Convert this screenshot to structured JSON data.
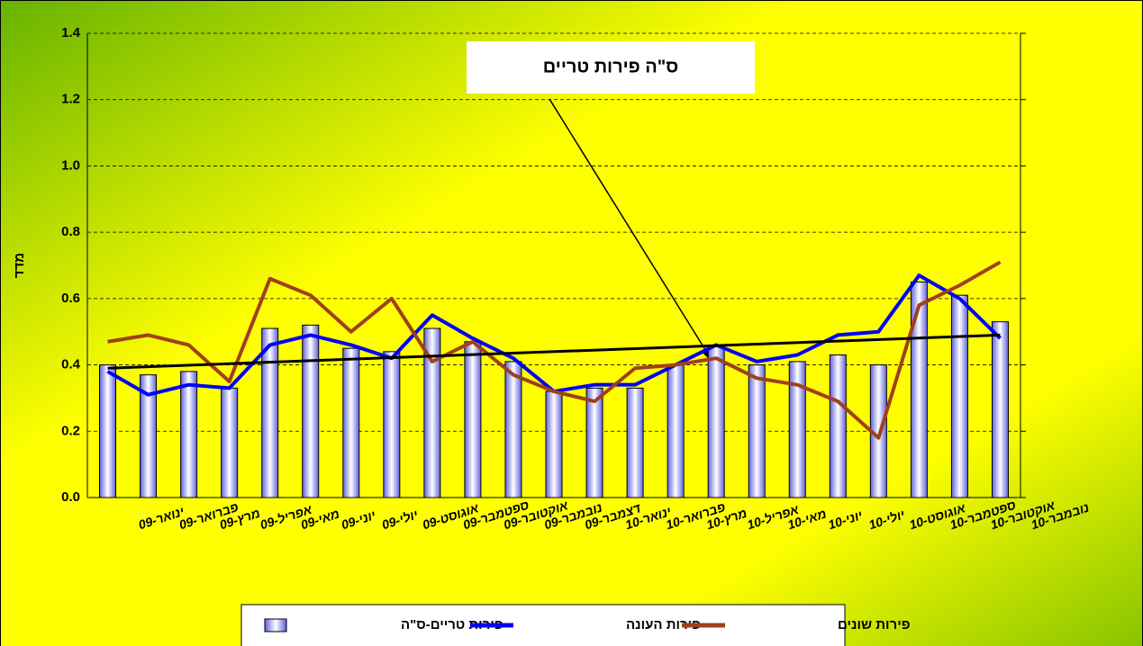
{
  "chart_data": {
    "type": "combo",
    "axis_label_y": "מדד",
    "annotation": "ס\"ה   פירות טריים",
    "categories": [
      "ינואר-09",
      "פברואר-09",
      "מרץ-09",
      "אפריל-09",
      "מאי-09",
      "יוני-09",
      "יולי-09",
      "אוגוסט-09",
      "ספטמבר-09",
      "אוקטובר-09",
      "נובמבר-09",
      "דצמבר-09",
      "ינואר-10",
      "פברואר-10",
      "מרץ-10",
      "אפריל-10",
      "מאי-10",
      "יוני-10",
      "יולי-10",
      "אוגוסט-10",
      "ספטמבר-10",
      "אוקטובר-10",
      "נובמבר-10"
    ],
    "series": [
      {
        "name": "פירות טריים-ס\"ה",
        "type": "bar",
        "color": "#8080ff",
        "values": [
          0.4,
          0.37,
          0.38,
          0.33,
          0.51,
          0.52,
          0.45,
          0.44,
          0.51,
          0.47,
          0.41,
          0.32,
          0.33,
          0.33,
          0.4,
          0.46,
          0.4,
          0.41,
          0.43,
          0.4,
          0.65,
          0.61,
          0.53
        ]
      },
      {
        "name": "פירות העונה",
        "type": "line",
        "color": "#0000ff",
        "values": [
          0.38,
          0.31,
          0.34,
          0.33,
          0.46,
          0.49,
          0.46,
          0.42,
          0.55,
          0.48,
          0.42,
          0.32,
          0.34,
          0.34,
          0.4,
          0.46,
          0.41,
          0.43,
          0.49,
          0.5,
          0.67,
          0.6,
          0.48
        ]
      },
      {
        "name": "פירות שונים",
        "type": "line",
        "color": "#a0401a",
        "values": [
          0.47,
          0.49,
          0.46,
          0.35,
          0.66,
          0.61,
          0.5,
          0.6,
          0.41,
          0.47,
          0.37,
          0.32,
          0.29,
          0.39,
          0.4,
          0.42,
          0.36,
          0.34,
          0.29,
          0.18,
          0.58,
          0.64,
          0.71
        ]
      }
    ],
    "trendline": {
      "color": "#000000",
      "values": [
        0.39,
        0.49
      ]
    },
    "ylim": [
      0,
      1.4
    ],
    "yticks": [
      {
        "value": 0,
        "label": "0.0"
      },
      {
        "value": 0.2,
        "label": "0.2"
      },
      {
        "value": 0.4,
        "label": "0.4"
      },
      {
        "value": 0.6,
        "label": "0.6"
      },
      {
        "value": 0.8,
        "label": "0.8"
      },
      {
        "value": 1,
        "label": "1.0"
      },
      {
        "value": 1.2,
        "label": "1.2"
      },
      {
        "value": 1.4,
        "label": "1.4"
      }
    ],
    "grid": true
  }
}
